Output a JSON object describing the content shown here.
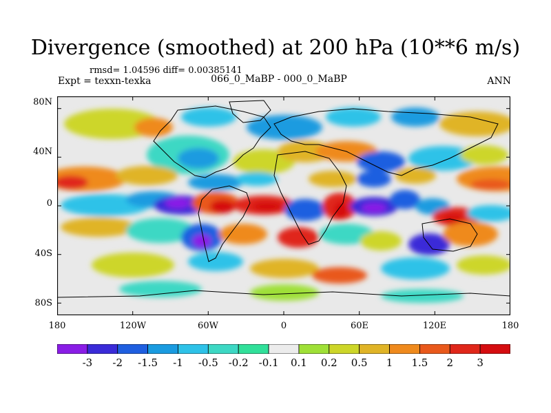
{
  "title": "Divergence (smoothed) at 200 hPa (10**6 m/s)",
  "stats": "rmsd= 1.04596 diff= 0.00385141",
  "left_label": "Expt = texxn-texka",
  "center_label": "066_0_MaBP - 000_0_MaBP",
  "right_label": "ANN",
  "y_ticks": [
    "80N",
    "40N",
    "0",
    "40S",
    "80S"
  ],
  "x_ticks": [
    "180",
    "120W",
    "60W",
    "0",
    "60E",
    "120E",
    "180"
  ],
  "colorbar": {
    "labels": [
      "-3",
      "-2",
      "-1.5",
      "-1",
      "-0.5",
      "-0.2",
      "-0.1",
      "0.1",
      "0.2",
      "0.5",
      "1",
      "1.5",
      "2",
      "3"
    ],
    "colors": [
      "#8a1de6",
      "#3a2bd8",
      "#1f5fe0",
      "#1a9be0",
      "#2ec2e8",
      "#3dd8c4",
      "#31e09a",
      "#ececec",
      "#9fe037",
      "#cdd629",
      "#e0b427",
      "#ef8a1d",
      "#e9591c",
      "#e0271a",
      "#d50d10"
    ]
  }
}
